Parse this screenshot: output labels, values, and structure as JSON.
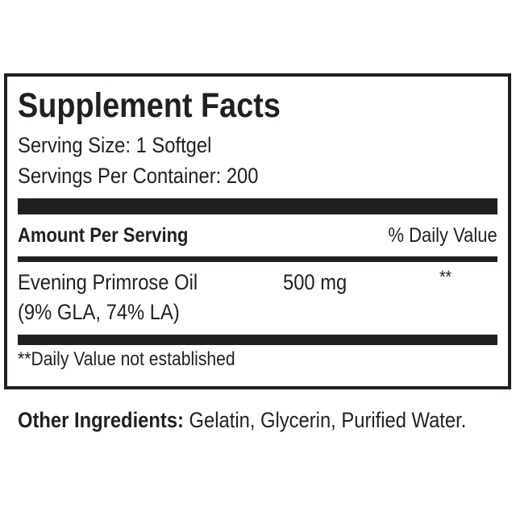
{
  "title": "Supplement Facts",
  "serving_size": "Serving Size: 1 Softgel",
  "servings_per_container": "Servings Per Container: 200",
  "header": {
    "amount": "Amount Per Serving",
    "daily_value": "% Daily Value"
  },
  "rows": [
    {
      "name": "Evening Primrose Oil",
      "detail": "(9% GLA, 74% LA)",
      "amount": "500 mg",
      "dv": "**"
    }
  ],
  "footnote": "**Daily Value not established",
  "other_ingredients": {
    "label": "Other Ingredients:",
    "value": " Gelatin, Glycerin, Purified Water."
  }
}
